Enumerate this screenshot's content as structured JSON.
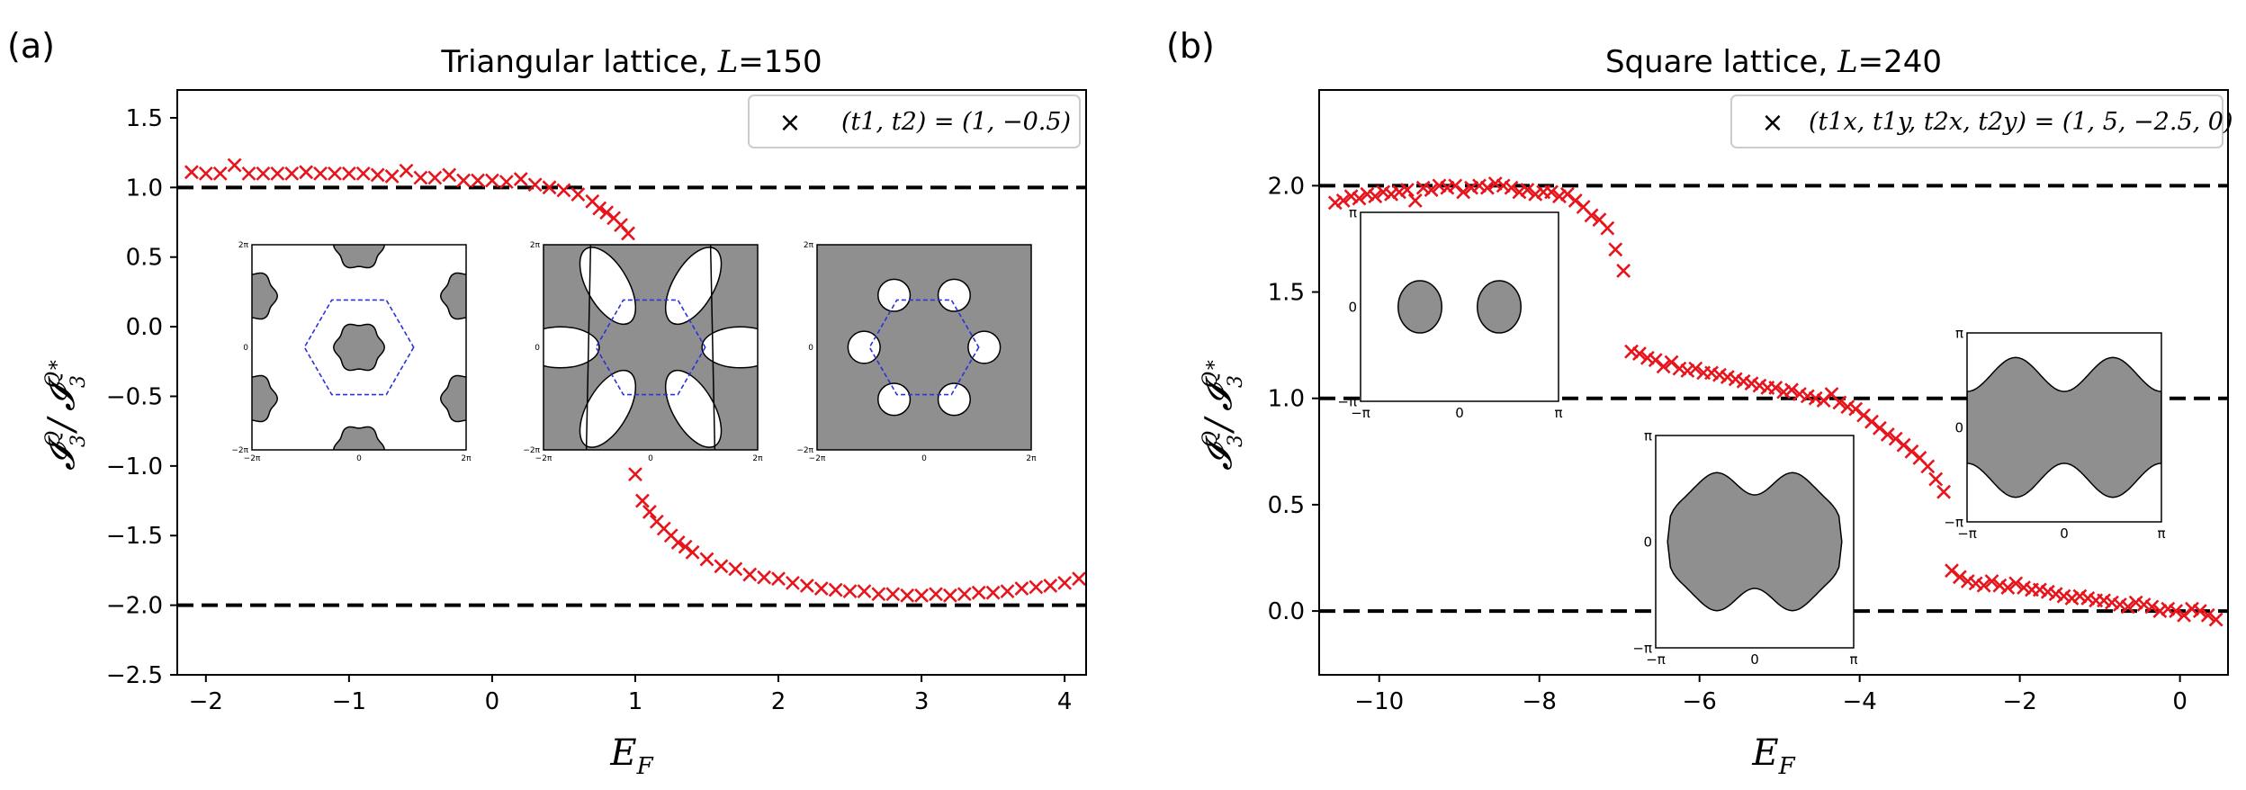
{
  "chart_data": [
    {
      "type": "scatter",
      "panel_label": "(a)",
      "title": "Triangular lattice, L=150",
      "title_parts": {
        "text": "Triangular lattice, ",
        "var": "L",
        "rest": "=150"
      },
      "xlabel": "E_F",
      "xlabel_main": "E",
      "xlabel_sub": "F",
      "ylabel": "I_3^Q / I_3^{Q*}",
      "xlim": [
        -2.2,
        4.15
      ],
      "ylim": [
        -2.5,
        1.7
      ],
      "xticks": [
        -2,
        -1,
        0,
        1,
        2,
        3,
        4
      ],
      "xtick_labels": [
        "−2",
        "−1",
        "0",
        "1",
        "2",
        "3",
        "4"
      ],
      "yticks": [
        1.5,
        1.0,
        0.5,
        0.0,
        -0.5,
        -1.0,
        -1.5,
        -2.0,
        -2.5
      ],
      "ytick_labels": [
        "1.5",
        "1.0",
        "0.5",
        "0.0",
        "−0.5",
        "−1.0",
        "−1.5",
        "−2.0",
        "−2.5"
      ],
      "hlines": [
        1.0,
        -2.0
      ],
      "legend": {
        "marker": "×",
        "label": "(t1, t2) = (1, −0.5)",
        "position": "top-right",
        "color": "#e8141c"
      },
      "series": [
        {
          "name": "(t1, t2) = (1, −0.5)",
          "color": "#e8141c",
          "marker": "x",
          "x": [
            -2.1,
            -2.0,
            -1.9,
            -1.8,
            -1.7,
            -1.6,
            -1.5,
            -1.4,
            -1.3,
            -1.2,
            -1.1,
            -1.0,
            -0.9,
            -0.8,
            -0.7,
            -0.6,
            -0.5,
            -0.4,
            -0.3,
            -0.2,
            -0.1,
            0.0,
            0.1,
            0.2,
            0.3,
            0.4,
            0.5,
            0.6,
            0.7,
            0.75,
            0.8,
            0.85,
            0.9,
            0.95,
            1.0,
            1.05,
            1.1,
            1.15,
            1.2,
            1.25,
            1.3,
            1.35,
            1.4,
            1.5,
            1.6,
            1.7,
            1.8,
            1.9,
            2.0,
            2.1,
            2.2,
            2.3,
            2.4,
            2.5,
            2.6,
            2.7,
            2.8,
            2.9,
            3.0,
            3.1,
            3.2,
            3.3,
            3.4,
            3.5,
            3.6,
            3.7,
            3.8,
            3.9,
            4.0,
            4.1
          ],
          "y": [
            1.11,
            1.1,
            1.1,
            1.16,
            1.1,
            1.1,
            1.1,
            1.1,
            1.11,
            1.1,
            1.1,
            1.1,
            1.1,
            1.09,
            1.08,
            1.12,
            1.07,
            1.07,
            1.09,
            1.05,
            1.05,
            1.05,
            1.04,
            1.06,
            1.02,
            1.0,
            0.98,
            0.95,
            0.9,
            0.85,
            0.82,
            0.78,
            0.73,
            0.67,
            -1.06,
            -1.25,
            -1.33,
            -1.4,
            -1.45,
            -1.5,
            -1.55,
            -1.58,
            -1.62,
            -1.67,
            -1.72,
            -1.74,
            -1.78,
            -1.8,
            -1.81,
            -1.84,
            -1.86,
            -1.88,
            -1.89,
            -1.9,
            -1.9,
            -1.92,
            -1.92,
            -1.93,
            -1.93,
            -1.92,
            -1.93,
            -1.92,
            -1.91,
            -1.91,
            -1.9,
            -1.88,
            -1.87,
            -1.86,
            -1.84,
            -1.81
          ]
        }
      ],
      "insets": [
        {
          "kind": "tri1",
          "xticks": [
            "−2π",
            "0",
            "2π"
          ],
          "yticks": [
            "2π",
            "0",
            "−2π"
          ]
        },
        {
          "kind": "tri2",
          "xticks": [
            "−2π",
            "0",
            "2π"
          ],
          "yticks": [
            "2π",
            "0",
            "−2π"
          ]
        },
        {
          "kind": "tri3",
          "xticks": [
            "−2π",
            "0",
            "2π"
          ],
          "yticks": [
            "2π",
            "0",
            "−2π"
          ]
        }
      ]
    },
    {
      "type": "scatter",
      "panel_label": "(b)",
      "title": "Square lattice, L=240",
      "title_parts": {
        "text": "Square lattice, ",
        "var": "L",
        "rest": "=240"
      },
      "xlabel": "E_F",
      "xlabel_main": "E",
      "xlabel_sub": "F",
      "ylabel": "I_3^Q / I_3^{Q*}",
      "xlim": [
        -10.75,
        0.6
      ],
      "ylim": [
        -0.3,
        2.45
      ],
      "xticks": [
        -10,
        -8,
        -6,
        -4,
        -2,
        0
      ],
      "xtick_labels": [
        "−10",
        "−8",
        "−6",
        "−4",
        "−2",
        "0"
      ],
      "yticks": [
        2.0,
        1.5,
        1.0,
        0.5,
        0.0
      ],
      "ytick_labels": [
        "2.0",
        "1.5",
        "1.0",
        "0.5",
        "0.0"
      ],
      "hlines": [
        2.0,
        1.0,
        0.0
      ],
      "legend": {
        "marker": "×",
        "label": "(t1x, t1y, t2x, t2y) = (1, 5, −2.5, 0)",
        "position": "top-right",
        "color": "#e8141c"
      },
      "series": [
        {
          "name": "(t1x, t1y, t2x, t2y) = (1, 5, −2.5, 0)",
          "color": "#e8141c",
          "marker": "x",
          "x": [
            -10.55,
            -10.45,
            -10.35,
            -10.25,
            -10.15,
            -10.05,
            -9.95,
            -9.85,
            -9.75,
            -9.65,
            -9.55,
            -9.45,
            -9.35,
            -9.25,
            -9.15,
            -9.05,
            -8.95,
            -8.85,
            -8.75,
            -8.65,
            -8.55,
            -8.45,
            -8.35,
            -8.25,
            -8.15,
            -8.05,
            -7.95,
            -7.85,
            -7.75,
            -7.65,
            -7.55,
            -7.45,
            -7.35,
            -7.25,
            -7.15,
            -7.05,
            -6.95,
            -6.85,
            -6.75,
            -6.65,
            -6.55,
            -6.45,
            -6.35,
            -6.25,
            -6.15,
            -6.05,
            -5.95,
            -5.85,
            -5.75,
            -5.65,
            -5.55,
            -5.45,
            -5.35,
            -5.25,
            -5.15,
            -5.05,
            -4.95,
            -4.85,
            -4.75,
            -4.65,
            -4.55,
            -4.45,
            -4.35,
            -4.25,
            -4.15,
            -4.05,
            -3.95,
            -3.85,
            -3.75,
            -3.65,
            -3.55,
            -3.45,
            -3.35,
            -3.25,
            -3.15,
            -3.05,
            -2.95,
            -2.85,
            -2.75,
            -2.65,
            -2.55,
            -2.45,
            -2.35,
            -2.25,
            -2.15,
            -2.05,
            -1.95,
            -1.85,
            -1.75,
            -1.65,
            -1.55,
            -1.45,
            -1.35,
            -1.25,
            -1.15,
            -1.05,
            -0.95,
            -0.85,
            -0.75,
            -0.65,
            -0.55,
            -0.45,
            -0.35,
            -0.25,
            -0.15,
            -0.05,
            0.05,
            0.15,
            0.25,
            0.35,
            0.45
          ],
          "y": [
            1.92,
            1.93,
            1.95,
            1.94,
            1.96,
            1.95,
            1.97,
            1.96,
            1.97,
            1.98,
            1.93,
            1.99,
            1.98,
            2.0,
            1.99,
            2.0,
            1.97,
            1.99,
            2.0,
            1.99,
            2.01,
            2.0,
            1.99,
            1.97,
            1.98,
            1.96,
            1.97,
            1.97,
            1.95,
            1.96,
            1.93,
            1.9,
            1.86,
            1.84,
            1.8,
            1.7,
            1.6,
            1.22,
            1.21,
            1.19,
            1.18,
            1.15,
            1.17,
            1.14,
            1.13,
            1.14,
            1.12,
            1.12,
            1.11,
            1.1,
            1.09,
            1.08,
            1.07,
            1.06,
            1.05,
            1.05,
            1.03,
            1.04,
            1.02,
            1.01,
            1.0,
            0.99,
            1.02,
            0.98,
            0.96,
            0.95,
            0.92,
            0.89,
            0.86,
            0.83,
            0.81,
            0.78,
            0.75,
            0.72,
            0.68,
            0.62,
            0.56,
            0.19,
            0.16,
            0.14,
            0.13,
            0.12,
            0.14,
            0.12,
            0.11,
            0.13,
            0.11,
            0.1,
            0.1,
            0.09,
            0.08,
            0.07,
            0.06,
            0.07,
            0.06,
            0.05,
            0.05,
            0.04,
            0.03,
            0.02,
            0.04,
            0.03,
            0.02,
            0.0,
            0.01,
            0.0,
            -0.02,
            0.01,
            0.0,
            -0.02,
            -0.04
          ]
        }
      ],
      "insets": [
        {
          "kind": "sq1",
          "xticks": [
            "−π",
            "0",
            "π"
          ],
          "yticks": [
            "π",
            "0",
            "−π"
          ]
        },
        {
          "kind": "sq2",
          "xticks": [
            "−π",
            "0",
            "π"
          ],
          "yticks": [
            "π",
            "0",
            "−π"
          ]
        },
        {
          "kind": "sq3",
          "xticks": [
            "−π",
            "0",
            "π"
          ],
          "yticks": [
            "π",
            "0",
            "−π"
          ]
        }
      ]
    }
  ]
}
